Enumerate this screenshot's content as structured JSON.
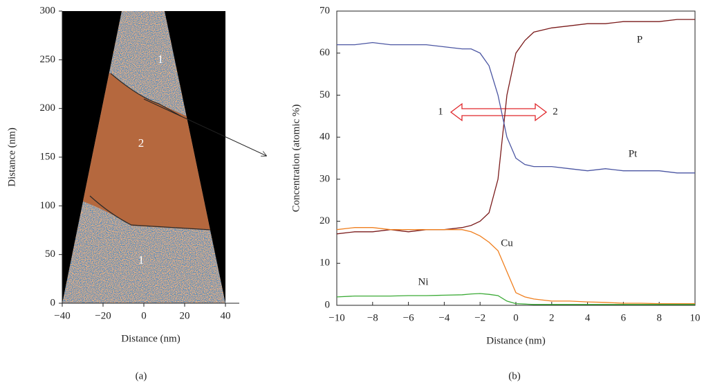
{
  "chart_data": [
    {
      "type": "image",
      "xlabel": "Distance (nm)",
      "ylabel": "Distance (nm)",
      "caption": "(a)",
      "region_labels": [
        "1",
        "2",
        "1"
      ],
      "xlim": [
        -40,
        40
      ],
      "xticks": [
        {
          "value": -40,
          "label": "−40"
        },
        {
          "value": -20,
          "label": "−20"
        },
        0,
        20,
        40
      ],
      "ylim": [
        0,
        300
      ],
      "yticks": [
        0,
        50,
        100,
        150,
        200,
        250,
        300
      ]
    },
    {
      "type": "line",
      "xlabel": "Distance (nm)",
      "ylabel": "Concentration (atomic %)",
      "caption": "(b)",
      "annotations": [
        "1",
        "2"
      ],
      "x": [
        -10,
        -9,
        -8,
        -7,
        -6,
        -5,
        -4,
        -3,
        -2.5,
        -2,
        -1.5,
        -1,
        -0.5,
        0,
        0.5,
        1,
        2,
        3,
        4,
        5,
        6,
        7,
        8,
        9,
        10
      ],
      "series": [
        {
          "name": "P",
          "color": "#7a1a1a",
          "values": [
            17,
            17.5,
            17.5,
            18,
            17.5,
            18,
            18,
            18.5,
            19,
            20,
            22,
            30,
            50,
            60,
            63,
            65,
            66,
            66.5,
            67,
            67,
            67.5,
            67.5,
            67.5,
            68,
            68
          ]
        },
        {
          "name": "Pt",
          "color": "#4a55a2",
          "values": [
            62,
            62,
            62.5,
            62,
            62,
            62,
            61.5,
            61,
            61,
            60,
            57,
            50,
            40,
            35,
            33.5,
            33,
            33,
            32.5,
            32,
            32.5,
            32,
            32,
            32,
            31.5,
            31.5
          ]
        },
        {
          "name": "Cu",
          "color": "#f07f1e",
          "values": [
            18,
            18.5,
            18.5,
            18,
            18,
            18,
            18,
            18,
            17.5,
            16.5,
            15,
            13,
            8,
            3,
            2,
            1.5,
            1,
            1,
            0.8,
            0.7,
            0.5,
            0.5,
            0.4,
            0.4,
            0.4
          ]
        },
        {
          "name": "Ni",
          "color": "#3aaa35",
          "values": [
            2,
            2.2,
            2.2,
            2.2,
            2.3,
            2.3,
            2.4,
            2.5,
            2.7,
            2.8,
            2.6,
            2.3,
            1,
            0.4,
            0.3,
            0.2,
            0.2,
            0.2,
            0.2,
            0.2,
            0.2,
            0.2,
            0.2,
            0.2,
            0.2
          ]
        }
      ],
      "xlim": [
        -10,
        10
      ],
      "xticks": [
        {
          "value": -10,
          "label": "−10"
        },
        {
          "value": -8,
          "label": "−8"
        },
        {
          "value": -6,
          "label": "−6"
        },
        {
          "value": -4,
          "label": "−4"
        },
        {
          "value": -2,
          "label": "−2"
        },
        0,
        2,
        4,
        6,
        8,
        10
      ],
      "ylim": [
        0,
        70
      ],
      "yticks": [
        0,
        10,
        20,
        30,
        40,
        50,
        60,
        70
      ]
    }
  ]
}
